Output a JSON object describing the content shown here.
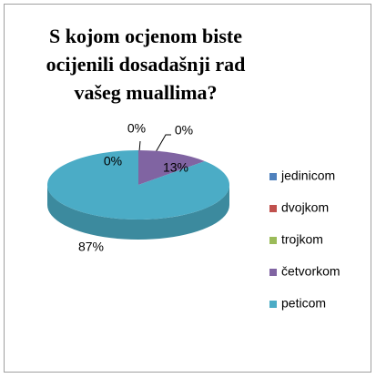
{
  "chart_data": {
    "type": "pie",
    "title": "S kojom ocjenom biste ocijenili dosadašnji rad vašeg muallima?",
    "categories": [
      "jedinicom",
      "dvojkom",
      "trojkom",
      "četvorkom",
      "peticom"
    ],
    "values": [
      0,
      0,
      0,
      13,
      87
    ],
    "value_labels": [
      "0%",
      "0%",
      "0%",
      "13%",
      "87%"
    ],
    "colors": [
      "#4f81bd",
      "#c0504d",
      "#9bbb59",
      "#8064a2",
      "#4bacc6"
    ],
    "legend": "right"
  }
}
